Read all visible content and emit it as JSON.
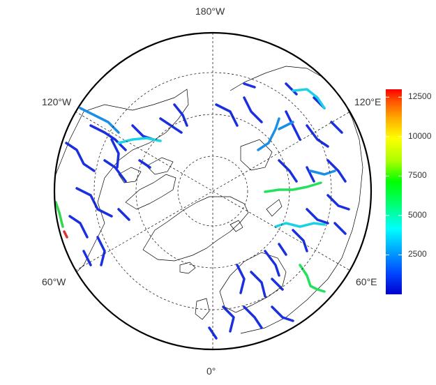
{
  "map": {
    "projection": "north polar stereographic",
    "graticule_labels": {
      "top": "180°W",
      "bottom": "0°",
      "upper_left": "120°W",
      "upper_right": "120°E",
      "lower_left": "60°W",
      "lower_right": "60°E"
    },
    "graticule_style": "dashed",
    "river_color_scale": "discharge colored from blue (low) to red (high)"
  },
  "legend": {
    "ticks": [
      "12500",
      "10000",
      "7500",
      "5000",
      "2500"
    ],
    "tick_values": [
      12500,
      10000,
      7500,
      5000,
      2500
    ],
    "range": [
      0,
      13000
    ],
    "colors": [
      "#0000cc",
      "#0044ff",
      "#00aaff",
      "#00ffff",
      "#00ff66",
      "#00ff00",
      "#aaff00",
      "#ffff00",
      "#ffaa00",
      "#ff5500",
      "#ff0000"
    ]
  }
}
